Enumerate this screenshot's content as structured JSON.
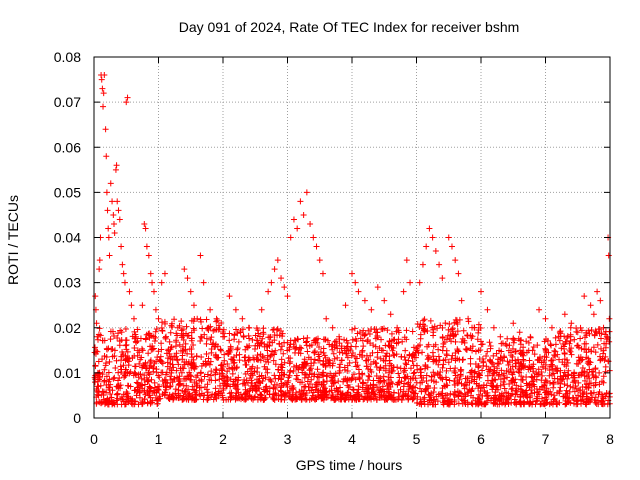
{
  "chart_data": {
    "type": "scatter",
    "title": "Day 091 of 2024, Rate Of TEC Index for receiver bshm",
    "xlabel": "GPS time / hours",
    "ylabel": "ROTI / TECUs",
    "xlim": [
      0,
      8
    ],
    "ylim": [
      0,
      0.08
    ],
    "x_ticks": [
      0,
      1,
      2,
      3,
      4,
      5,
      6,
      7,
      8
    ],
    "x_tick_labels": [
      "0",
      "1",
      "2",
      "3",
      "4",
      "5",
      "6",
      "7",
      "8"
    ],
    "y_ticks": [
      0,
      0.01,
      0.02,
      0.03,
      0.04,
      0.05,
      0.06,
      0.07,
      0.08
    ],
    "y_tick_labels": [
      "0",
      "0.01",
      "0.02",
      "0.03",
      "0.04",
      "0.05",
      "0.06",
      "0.07",
      "0.08"
    ],
    "grid": true,
    "marker": "+",
    "color": "#ff0000",
    "series": [
      {
        "name": "ROTI",
        "points": [
          [
            0.02,
            0.027
          ],
          [
            0.03,
            0.024
          ],
          [
            0.04,
            0.021
          ],
          [
            0.05,
            0.018
          ],
          [
            0.06,
            0.01
          ],
          [
            0.07,
            0.005
          ],
          [
            0.08,
            0.033
          ],
          [
            0.09,
            0.035
          ],
          [
            0.1,
            0.04
          ],
          [
            0.11,
            0.076
          ],
          [
            0.12,
            0.075
          ],
          [
            0.13,
            0.073
          ],
          [
            0.14,
            0.069
          ],
          [
            0.15,
            0.072
          ],
          [
            0.16,
            0.076
          ],
          [
            0.18,
            0.064
          ],
          [
            0.19,
            0.058
          ],
          [
            0.2,
            0.05
          ],
          [
            0.21,
            0.046
          ],
          [
            0.22,
            0.042
          ],
          [
            0.23,
            0.04
          ],
          [
            0.24,
            0.036
          ],
          [
            0.26,
            0.052
          ],
          [
            0.28,
            0.048
          ],
          [
            0.3,
            0.045
          ],
          [
            0.31,
            0.043
          ],
          [
            0.32,
            0.041
          ],
          [
            0.34,
            0.055
          ],
          [
            0.35,
            0.056
          ],
          [
            0.36,
            0.048
          ],
          [
            0.38,
            0.046
          ],
          [
            0.4,
            0.044
          ],
          [
            0.42,
            0.038
          ],
          [
            0.44,
            0.034
          ],
          [
            0.46,
            0.032
          ],
          [
            0.48,
            0.03
          ],
          [
            0.5,
            0.07
          ],
          [
            0.52,
            0.071
          ],
          [
            0.55,
            0.028
          ],
          [
            0.58,
            0.025
          ],
          [
            0.62,
            0.022
          ],
          [
            0.65,
            0.018
          ],
          [
            0.68,
            0.015
          ],
          [
            0.7,
            0.012
          ],
          [
            0.75,
            0.025
          ],
          [
            0.78,
            0.043
          ],
          [
            0.8,
            0.042
          ],
          [
            0.82,
            0.038
          ],
          [
            0.85,
            0.036
          ],
          [
            0.88,
            0.032
          ],
          [
            0.9,
            0.03
          ],
          [
            0.93,
            0.028
          ],
          [
            0.96,
            0.024
          ],
          [
            1.0,
            0.022
          ],
          [
            1.05,
            0.03
          ],
          [
            1.1,
            0.032
          ],
          [
            1.15,
            0.015
          ],
          [
            1.2,
            0.01
          ],
          [
            1.3,
            0.02
          ],
          [
            1.4,
            0.033
          ],
          [
            1.45,
            0.031
          ],
          [
            1.5,
            0.028
          ],
          [
            1.55,
            0.025
          ],
          [
            1.6,
            0.022
          ],
          [
            1.65,
            0.036
          ],
          [
            1.7,
            0.03
          ],
          [
            1.8,
            0.024
          ],
          [
            1.9,
            0.022
          ],
          [
            2.0,
            0.018
          ],
          [
            2.1,
            0.027
          ],
          [
            2.2,
            0.024
          ],
          [
            2.3,
            0.022
          ],
          [
            2.4,
            0.02
          ],
          [
            2.5,
            0.016
          ],
          [
            2.6,
            0.024
          ],
          [
            2.7,
            0.028
          ],
          [
            2.75,
            0.03
          ],
          [
            2.8,
            0.033
          ],
          [
            2.85,
            0.035
          ],
          [
            2.9,
            0.031
          ],
          [
            2.95,
            0.029
          ],
          [
            3.0,
            0.027
          ],
          [
            3.05,
            0.04
          ],
          [
            3.1,
            0.044
          ],
          [
            3.15,
            0.042
          ],
          [
            3.2,
            0.048
          ],
          [
            3.25,
            0.045
          ],
          [
            3.3,
            0.05
          ],
          [
            3.35,
            0.043
          ],
          [
            3.4,
            0.04
          ],
          [
            3.45,
            0.038
          ],
          [
            3.5,
            0.035
          ],
          [
            3.55,
            0.032
          ],
          [
            3.6,
            0.022
          ],
          [
            3.7,
            0.02
          ],
          [
            3.8,
            0.018
          ],
          [
            3.9,
            0.025
          ],
          [
            4.0,
            0.032
          ],
          [
            4.05,
            0.03
          ],
          [
            4.1,
            0.028
          ],
          [
            4.2,
            0.026
          ],
          [
            4.3,
            0.024
          ],
          [
            4.4,
            0.029
          ],
          [
            4.5,
            0.026
          ],
          [
            4.6,
            0.023
          ],
          [
            4.7,
            0.02
          ],
          [
            4.8,
            0.028
          ],
          [
            4.85,
            0.035
          ],
          [
            4.9,
            0.03
          ],
          [
            5.0,
            0.015
          ],
          [
            5.05,
            0.03
          ],
          [
            5.1,
            0.034
          ],
          [
            5.15,
            0.038
          ],
          [
            5.2,
            0.042
          ],
          [
            5.25,
            0.04
          ],
          [
            5.3,
            0.037
          ],
          [
            5.35,
            0.034
          ],
          [
            5.4,
            0.031
          ],
          [
            5.5,
            0.04
          ],
          [
            5.55,
            0.038
          ],
          [
            5.6,
            0.035
          ],
          [
            5.65,
            0.032
          ],
          [
            5.7,
            0.026
          ],
          [
            5.8,
            0.022
          ],
          [
            5.9,
            0.02
          ],
          [
            6.0,
            0.028
          ],
          [
            6.1,
            0.024
          ],
          [
            6.2,
            0.02
          ],
          [
            6.3,
            0.018
          ],
          [
            6.4,
            0.016
          ],
          [
            6.5,
            0.021
          ],
          [
            6.6,
            0.019
          ],
          [
            6.7,
            0.017
          ],
          [
            6.8,
            0.015
          ],
          [
            6.9,
            0.024
          ],
          [
            7.0,
            0.022
          ],
          [
            7.1,
            0.02
          ],
          [
            7.2,
            0.018
          ],
          [
            7.3,
            0.023
          ],
          [
            7.4,
            0.021
          ],
          [
            7.5,
            0.019
          ],
          [
            7.6,
            0.027
          ],
          [
            7.7,
            0.025
          ],
          [
            7.75,
            0.023
          ],
          [
            7.8,
            0.028
          ],
          [
            7.85,
            0.026
          ],
          [
            7.9,
            0.02
          ],
          [
            7.95,
            0.018
          ],
          [
            7.97,
            0.04
          ],
          [
            7.98,
            0.036
          ],
          [
            7.99,
            0.022
          ]
        ],
        "dense_band": {
          "description": "bulk of points",
          "segments": [
            [
              0.0,
              1.0,
              0.003,
              0.02
            ],
            [
              1.0,
              2.0,
              0.004,
              0.022
            ],
            [
              2.0,
              3.0,
              0.004,
              0.02
            ],
            [
              3.0,
              4.0,
              0.004,
              0.018
            ],
            [
              4.0,
              5.0,
              0.004,
              0.02
            ],
            [
              5.0,
              6.0,
              0.003,
              0.022
            ],
            [
              6.0,
              7.0,
              0.003,
              0.018
            ],
            [
              7.0,
              8.0,
              0.003,
              0.02
            ]
          ]
        }
      }
    ]
  }
}
